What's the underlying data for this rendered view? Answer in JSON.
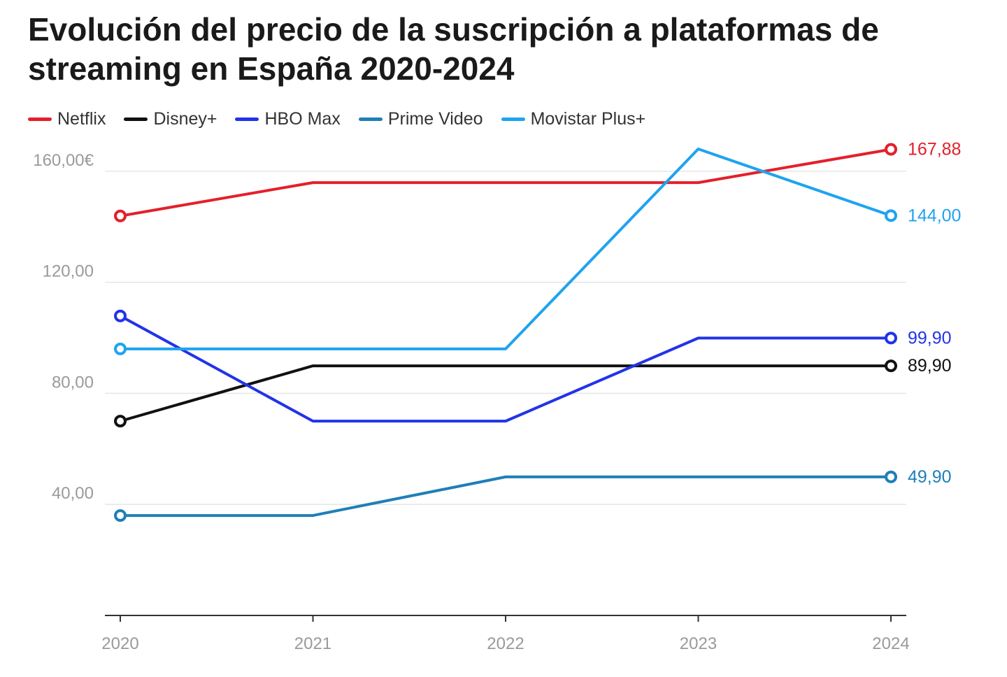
{
  "chart_data": {
    "type": "line",
    "title": "Evolución del precio de la suscripción a plataformas de streaming en España 2020-2024",
    "xlabel": "",
    "ylabel": "",
    "categories": [
      "2020",
      "2021",
      "2022",
      "2023",
      "2024"
    ],
    "y_ticks": [
      40,
      80,
      120,
      160
    ],
    "y_tick_labels": [
      "40,00",
      "80,00",
      "120,00",
      "160,00€"
    ],
    "ylim": [
      0,
      170
    ],
    "grid": true,
    "legend_position": "top-left",
    "series": [
      {
        "name": "Netflix",
        "color": "#e3202b",
        "values": [
          143.88,
          155.88,
          155.88,
          155.88,
          167.88
        ],
        "end_label": "167,88"
      },
      {
        "name": "Disney+",
        "color": "#111111",
        "values": [
          69.99,
          89.9,
          89.9,
          89.9,
          89.9
        ],
        "end_label": "89,90"
      },
      {
        "name": "HBO Max",
        "color": "#2233e8",
        "values": [
          107.88,
          69.99,
          69.99,
          99.9,
          99.9
        ],
        "end_label": "99,90"
      },
      {
        "name": "Prime Video",
        "color": "#1f7fb8",
        "values": [
          36.0,
          36.0,
          49.9,
          49.9,
          49.9
        ],
        "end_label": "49,90"
      },
      {
        "name": "Movistar Plus+",
        "color": "#1fa3f0",
        "values": [
          96.0,
          96.0,
          96.0,
          168.0,
          144.0
        ],
        "end_label": "144,00"
      }
    ]
  }
}
